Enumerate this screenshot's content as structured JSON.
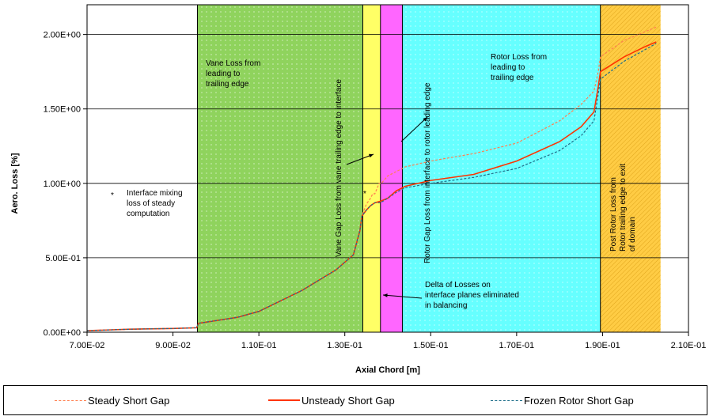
{
  "chart_data": {
    "type": "line",
    "xlabel": "Axial Chord [m]",
    "ylabel": "Aero. Loss [%]",
    "xlim": [
      0.07,
      0.21
    ],
    "ylim": [
      0.0,
      2.2
    ],
    "x_ticks": [
      "7.00E-02",
      "9.00E-02",
      "1.10E-01",
      "1.30E-01",
      "1.50E-01",
      "1.70E-01",
      "1.90E-01",
      "2.10E-01"
    ],
    "y_ticks": [
      "0.00E+00",
      "5.00E-01",
      "1.00E+00",
      "1.50E+00",
      "2.00E+00"
    ],
    "grid": "horizontal",
    "regions": [
      {
        "x0": 0.0957,
        "x1": 0.1342,
        "color": "#8fd35d",
        "pattern": "dotted"
      },
      {
        "x0": 0.1342,
        "x1": 0.1383,
        "color": "#ffff66",
        "pattern": "solid"
      },
      {
        "x0": 0.1383,
        "x1": 0.1434,
        "color": "#ff66ff",
        "pattern": "solid"
      },
      {
        "x0": 0.1434,
        "x1": 0.1895,
        "color": "#66ffff",
        "pattern": "dotted"
      },
      {
        "x0": 0.1895,
        "x1": 0.2035,
        "color": "#ffcc44",
        "pattern": "hatched"
      }
    ],
    "series": [
      {
        "name": "Steady Short Gap",
        "color": "#ff7f50",
        "style": "dashed",
        "x": [
          0.07,
          0.08,
          0.09,
          0.0955,
          0.096,
          0.105,
          0.11,
          0.12,
          0.128,
          0.132,
          0.1335,
          0.134,
          0.1345,
          0.135,
          0.136,
          0.1365,
          0.137,
          0.138,
          0.1383,
          0.1385,
          0.14,
          0.142,
          0.1434,
          0.144,
          0.15,
          0.16,
          0.17,
          0.18,
          0.185,
          0.188,
          0.189,
          0.1895,
          0.195,
          0.2,
          0.2025
        ],
        "y": [
          0.01,
          0.02,
          0.025,
          0.03,
          0.06,
          0.1,
          0.14,
          0.28,
          0.42,
          0.52,
          0.68,
          0.78,
          0.82,
          0.86,
          0.9,
          0.93,
          0.93,
          1.0,
          1.0,
          1.0,
          1.05,
          1.08,
          1.1,
          1.11,
          1.15,
          1.2,
          1.27,
          1.42,
          1.53,
          1.62,
          1.75,
          1.85,
          1.96,
          2.02,
          2.05
        ]
      },
      {
        "name": "Unsteady Short Gap",
        "color": "#ff3300",
        "style": "solid",
        "x": [
          0.07,
          0.08,
          0.09,
          0.0955,
          0.096,
          0.105,
          0.11,
          0.12,
          0.128,
          0.132,
          0.1335,
          0.134,
          0.1345,
          0.135,
          0.136,
          0.137,
          0.1383,
          0.14,
          0.142,
          0.1434,
          0.144,
          0.15,
          0.16,
          0.17,
          0.18,
          0.185,
          0.188,
          0.189,
          0.1895,
          0.195,
          0.2,
          0.2025
        ],
        "y": [
          0.01,
          0.02,
          0.025,
          0.03,
          0.06,
          0.1,
          0.14,
          0.28,
          0.42,
          0.52,
          0.68,
          0.78,
          0.8,
          0.82,
          0.85,
          0.87,
          0.88,
          0.9,
          0.95,
          0.97,
          0.98,
          1.02,
          1.06,
          1.15,
          1.28,
          1.38,
          1.48,
          1.65,
          1.75,
          1.85,
          1.92,
          1.95
        ]
      },
      {
        "name": "Frozen Rotor Short Gap",
        "color": "#1f6f8b",
        "style": "dashed",
        "x": [
          0.07,
          0.08,
          0.09,
          0.0955,
          0.096,
          0.105,
          0.11,
          0.12,
          0.128,
          0.132,
          0.1335,
          0.134,
          0.1345,
          0.135,
          0.136,
          0.137,
          0.1383,
          0.14,
          0.142,
          0.1434,
          0.144,
          0.15,
          0.16,
          0.17,
          0.18,
          0.185,
          0.188,
          0.189,
          0.1895,
          0.195,
          0.2,
          0.2025
        ],
        "y": [
          0.01,
          0.02,
          0.025,
          0.03,
          0.06,
          0.1,
          0.14,
          0.28,
          0.42,
          0.52,
          0.68,
          0.78,
          0.8,
          0.82,
          0.85,
          0.87,
          0.87,
          0.9,
          0.94,
          0.96,
          0.97,
          1.0,
          1.04,
          1.1,
          1.22,
          1.32,
          1.42,
          1.6,
          1.7,
          1.82,
          1.9,
          1.94
        ]
      }
    ],
    "annotations": [
      {
        "id": "vane",
        "lines": [
          "Vane Loss from",
          "leading to",
          "trailing edge"
        ]
      },
      {
        "id": "rotor",
        "lines": [
          "Rotor Loss from",
          "leading to",
          "trailing edge"
        ]
      },
      {
        "id": "interface",
        "lines": [
          "Interface mixing",
          "loss of steady",
          "computation"
        ]
      },
      {
        "id": "vanegap",
        "lines": [
          "Vane Gap Loss from vane trailing edge to interface"
        ]
      },
      {
        "id": "rotorgap",
        "lines": [
          "Rotor Gap Loss from interface to rotor leading edge"
        ]
      },
      {
        "id": "postrotor",
        "lines": [
          "Post Rotor Loss from",
          "Rotor trailing edge to exit",
          "of domain"
        ]
      },
      {
        "id": "delta",
        "lines": [
          "Delta of Losses on",
          "interface planes eliminated",
          "in balancing"
        ]
      }
    ],
    "marker_symbol": "*",
    "legend_position": "bottom"
  }
}
